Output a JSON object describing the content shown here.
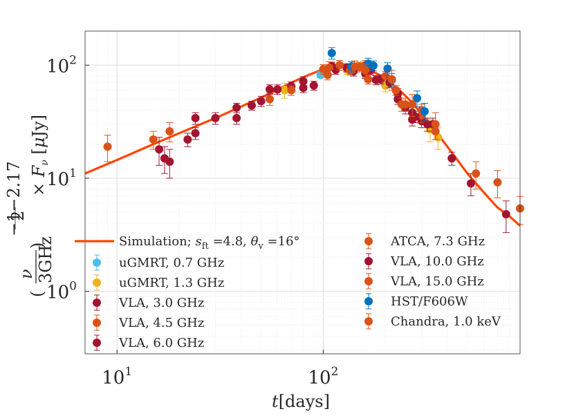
{
  "chart_data": {
    "type": "scatter",
    "title": "",
    "xlabel": {
      "italic": "t",
      "rest": "[days]"
    },
    "ylabel": {
      "prefix": "(ν/3GHz)^(−(1−2.17)/2)",
      "suffix": "× F_ν [μJy]"
    },
    "xscale": "log",
    "yscale": "log",
    "xlim": [
      7,
      900
    ],
    "ylim": [
      0.28,
      200
    ],
    "grid": true,
    "x_ticks": [
      {
        "base": "10",
        "exp": "1",
        "value": 10
      },
      {
        "base": "10",
        "exp": "2",
        "value": 100
      }
    ],
    "y_ticks": [
      {
        "base": "10",
        "exp": "0",
        "value": 1
      },
      {
        "base": "10",
        "exp": "1",
        "value": 10
      },
      {
        "base": "10",
        "exp": "2",
        "value": 100
      }
    ],
    "legend_position": "bottom",
    "model": {
      "name": "Simulation; s_ft =4.8, θ_v =16°",
      "label_parts": {
        "a": "Simulation; ",
        "s": "s",
        "s_sub": "ft",
        "b": " =4.8, ",
        "th": "θ",
        "th_sub": "v",
        "c": " =16°"
      },
      "color": "#FF4500",
      "x": [
        7,
        10,
        15,
        20,
        30,
        40,
        55,
        70,
        85,
        100,
        120,
        140,
        160,
        180,
        200,
        230,
        260,
        300,
        350,
        400,
        500,
        600,
        700,
        800,
        900
      ],
      "y": [
        11,
        14.5,
        20,
        25,
        34,
        43,
        56,
        70,
        82,
        92,
        98,
        98,
        93,
        85,
        76,
        62,
        50,
        37,
        26,
        19,
        11,
        7.5,
        5.5,
        4.6,
        3.8
      ]
    },
    "series": [
      {
        "name": "uGMRT, 0.7 GHz",
        "color": "#4DBEEE",
        "points": [
          [
            97,
            82,
            5
          ]
        ]
      },
      {
        "name": "uGMRT, 1.3 GHz",
        "color": "#EDB120",
        "points": [
          [
            65,
            60,
            9
          ],
          [
            130,
            92,
            9
          ],
          [
            150,
            98,
            9
          ],
          [
            200,
            66,
            8
          ],
          [
            330,
            27,
            6
          ],
          [
            360,
            23,
            5
          ]
        ]
      },
      {
        "name": "VLA, 3.0 GHz",
        "color": "#A2142F",
        "points": [
          [
            16,
            18,
            5
          ],
          [
            17,
            15,
            4
          ],
          [
            18,
            14,
            4
          ],
          [
            22,
            22,
            3
          ],
          [
            24,
            25,
            3
          ],
          [
            30,
            34,
            4
          ],
          [
            38,
            34,
            4
          ],
          [
            45,
            44,
            4
          ],
          [
            50,
            48,
            5
          ],
          [
            60,
            61,
            6
          ],
          [
            70,
            65,
            6
          ],
          [
            80,
            63,
            6
          ],
          [
            90,
            66,
            6
          ],
          [
            115,
            91,
            8
          ],
          [
            130,
            95,
            8
          ],
          [
            160,
            84,
            8
          ],
          [
            190,
            75,
            7
          ],
          [
            230,
            56,
            6
          ],
          [
            250,
            42,
            5
          ],
          [
            270,
            33,
            4
          ],
          [
            300,
            32,
            4
          ],
          [
            340,
            30,
            4
          ],
          [
            420,
            15,
            2
          ],
          [
            520,
            9,
            2
          ],
          [
            770,
            4.8,
            1.5
          ]
        ]
      },
      {
        "name": "VLA, 4.5 GHz",
        "color": "#D95319",
        "points": [
          [
            9,
            19,
            5
          ],
          [
            15,
            22,
            4
          ],
          [
            18,
            26,
            5
          ],
          [
            55,
            50,
            6
          ],
          [
            70,
            60,
            6
          ],
          [
            100,
            92,
            9
          ],
          [
            150,
            96,
            9
          ],
          [
            200,
            80,
            8
          ],
          [
            250,
            45,
            6
          ],
          [
            300,
            36,
            5
          ],
          [
            350,
            26,
            4
          ],
          [
            550,
            11,
            3
          ],
          [
            700,
            9.2,
            2.5
          ],
          [
            900,
            5.4,
            1.5
          ]
        ]
      },
      {
        "name": "VLA, 6.0 GHz",
        "color": "#A2142F",
        "points": [
          [
            24,
            34,
            4
          ],
          [
            38,
            42,
            4
          ],
          [
            55,
            61,
            6
          ],
          [
            80,
            72,
            7
          ],
          [
            110,
            98,
            8
          ],
          [
            140,
            88,
            8
          ],
          [
            180,
            74,
            7
          ],
          [
            230,
            50,
            5
          ],
          [
            270,
            38,
            5
          ],
          [
            320,
            30,
            4
          ]
        ]
      },
      {
        "name": "ATCA, 7.3 GHz",
        "color": "#D95319",
        "points": [
          [
            120,
            100,
            10
          ],
          [
            160,
            100,
            10
          ],
          [
            240,
            45,
            6
          ]
        ]
      },
      {
        "name": "VLA, 10.0 GHz",
        "color": "#A2142F",
        "points": [
          [
            170,
            90,
            8
          ],
          [
            210,
            70,
            7
          ],
          [
            280,
            35,
            4
          ]
        ]
      },
      {
        "name": "VLA, 15.0 GHz",
        "color": "#D95319",
        "points": [
          [
            105,
            82,
            8
          ],
          [
            135,
            90,
            8
          ],
          [
            165,
            75,
            7
          ],
          [
            225,
            60,
            6
          ],
          [
            300,
            40,
            5
          ]
        ]
      },
      {
        "name": "HST/F606W",
        "color": "#0072BD",
        "points": [
          [
            110,
            128,
            15
          ],
          [
            137,
            97,
            10
          ],
          [
            165,
            103,
            12
          ],
          [
            175,
            99,
            10
          ],
          [
            205,
            93,
            12
          ],
          [
            215,
            74,
            10
          ],
          [
            285,
            51,
            8
          ],
          [
            310,
            39,
            7
          ]
        ]
      },
      {
        "name": "Chandra, 1.0 keV",
        "color": "#D95319",
        "points": [
          [
            107,
            95,
            12
          ],
          [
            142,
            97,
            12
          ],
          [
            160,
            90,
            12
          ],
          [
            215,
            75,
            15
          ],
          [
            270,
            45,
            10
          ],
          [
            350,
            30,
            8
          ]
        ]
      }
    ]
  }
}
